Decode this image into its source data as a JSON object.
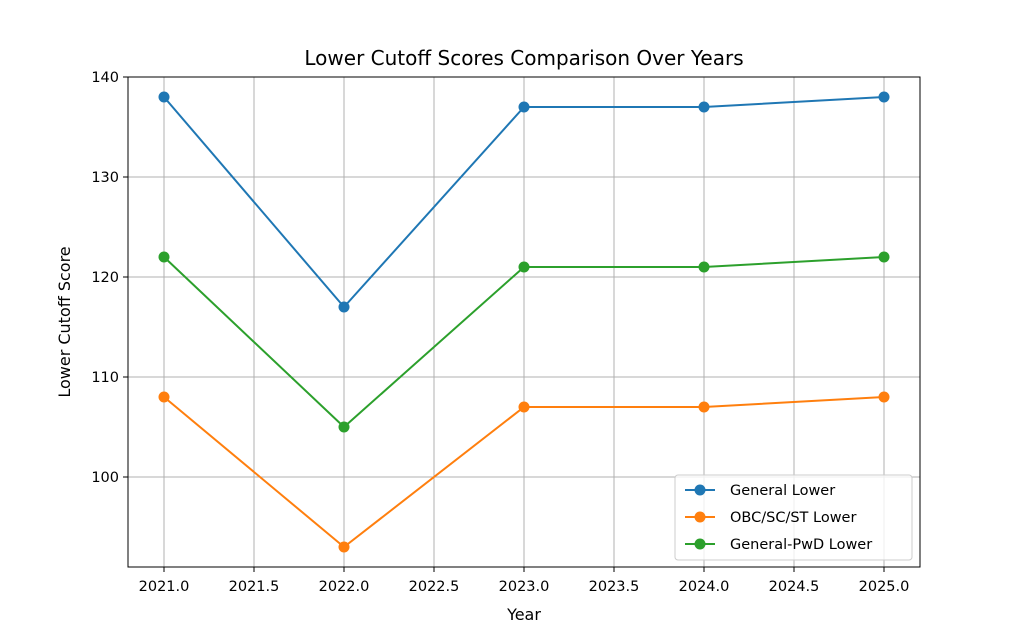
{
  "chart_data": {
    "type": "line",
    "title": "Lower Cutoff Scores Comparison Over Years",
    "xlabel": "Year",
    "ylabel": "Lower Cutoff Score",
    "x": [
      2021,
      2022,
      2023,
      2024,
      2025
    ],
    "xlim": [
      2020.8,
      2025.2
    ],
    "ylim": [
      91,
      140
    ],
    "xticks": [
      2021.0,
      2021.5,
      2022.0,
      2022.5,
      2023.0,
      2023.5,
      2024.0,
      2024.5,
      2025.0
    ],
    "xtick_labels": [
      "2021.0",
      "2021.5",
      "2022.0",
      "2022.5",
      "2023.0",
      "2023.5",
      "2024.0",
      "2024.5",
      "2025.0"
    ],
    "yticks": [
      100,
      110,
      120,
      130,
      140
    ],
    "ytick_labels": [
      "100",
      "110",
      "120",
      "130",
      "140"
    ],
    "grid": true,
    "legend_position": "bottom-right",
    "series": [
      {
        "name": "General Lower",
        "color": "#1f77b4",
        "marker": "circle",
        "values": [
          138,
          117,
          137,
          137,
          138
        ]
      },
      {
        "name": "OBC/SC/ST Lower",
        "color": "#ff7f0e",
        "marker": "circle",
        "values": [
          108,
          93,
          107,
          107,
          108
        ]
      },
      {
        "name": "General-PwD Lower",
        "color": "#2ca02c",
        "marker": "circle",
        "values": [
          122,
          105,
          121,
          121,
          122
        ]
      }
    ]
  }
}
